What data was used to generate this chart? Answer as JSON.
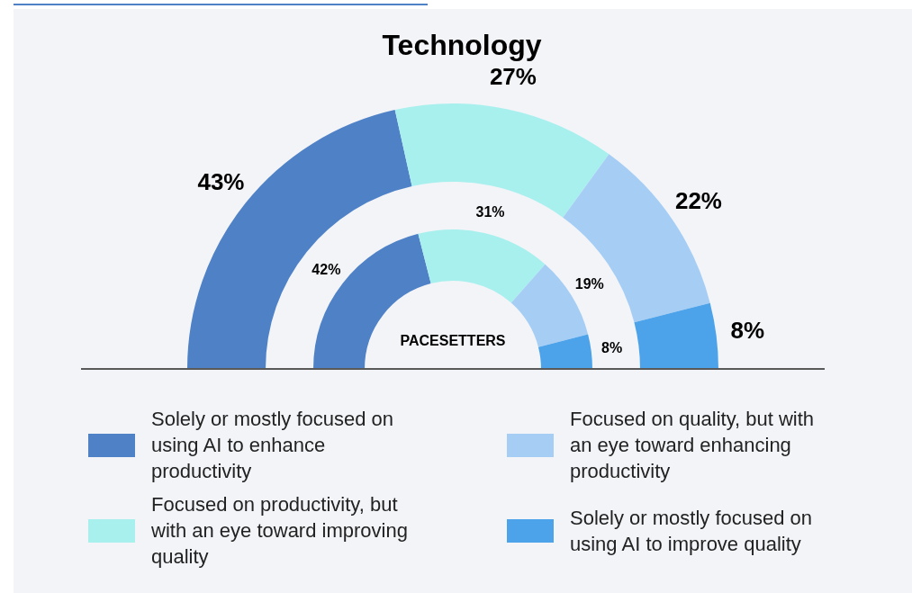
{
  "chart_data": {
    "type": "donut",
    "title": "Technology",
    "categories": [
      "Solely or mostly focused on using AI to enhance productivity",
      "Focused on productivity, but with an eye toward improving quality",
      "Focused on quality, but with an eye toward enhancing productivity",
      "Solely or mostly focused on using AI to improve quality"
    ],
    "colors": [
      "#4f81c7",
      "#a8f0ee",
      "#a6cef5",
      "#4da3ea"
    ],
    "series": [
      {
        "values": [
          43,
          27,
          22,
          8
        ],
        "value_labels": [
          "43%",
          "27%",
          "22%",
          "8%"
        ]
      },
      {
        "name": "PACESETTERS",
        "values": [
          42,
          31,
          19,
          8
        ],
        "value_labels": [
          "42%",
          "31%",
          "19%",
          "8%"
        ]
      }
    ],
    "legend": "bottom"
  }
}
